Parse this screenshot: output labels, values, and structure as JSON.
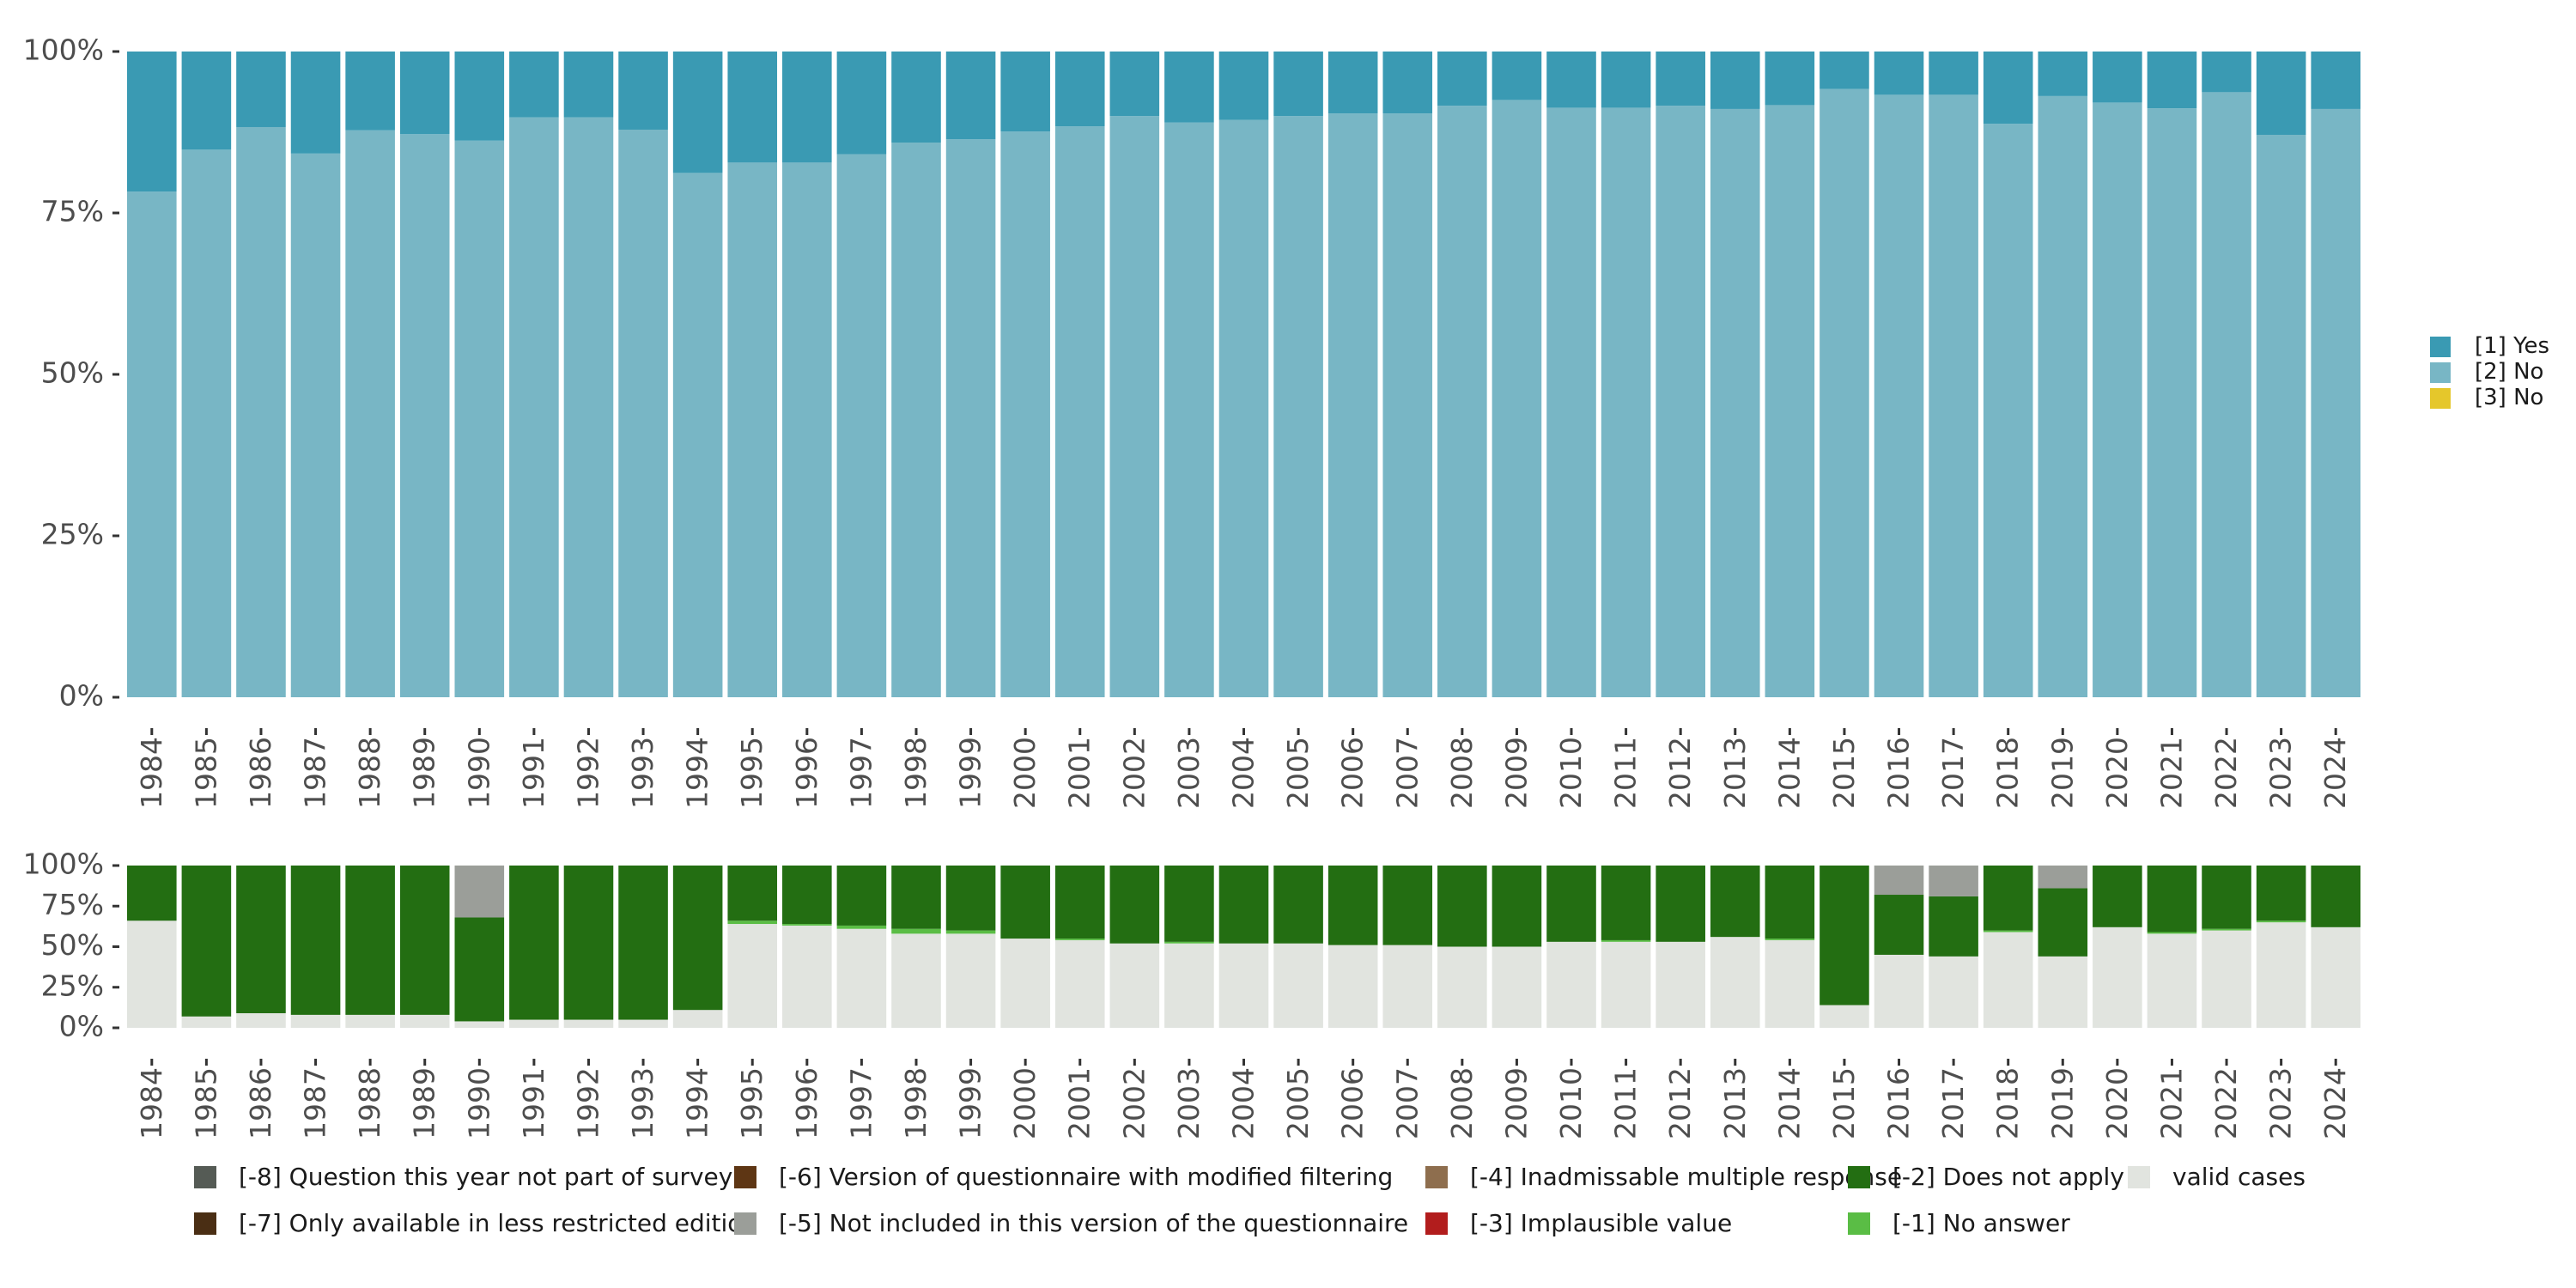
{
  "chart_data": [
    {
      "type": "bar",
      "stacked": true,
      "normalized": true,
      "title": "",
      "xlabel": "",
      "ylabel": "",
      "ylim": [
        0,
        100
      ],
      "yticks": [
        "0%",
        "25%",
        "50%",
        "75%",
        "100%"
      ],
      "categories": [
        "1984",
        "1985",
        "1986",
        "1987",
        "1988",
        "1989",
        "1990",
        "1991",
        "1992",
        "1993",
        "1994",
        "1995",
        "1996",
        "1997",
        "1998",
        "1999",
        "2000",
        "2001",
        "2002",
        "2003",
        "2004",
        "2005",
        "2006",
        "2007",
        "2008",
        "2009",
        "2010",
        "2011",
        "2012",
        "2013",
        "2014",
        "2015",
        "2016",
        "2017",
        "2018",
        "2019",
        "2020",
        "2021",
        "2022",
        "2023",
        "2024"
      ],
      "series": [
        {
          "name": "[2] No",
          "color": "#78b6c5",
          "values": [
            78.3,
            84.8,
            88.3,
            84.2,
            87.8,
            87.2,
            86.2,
            89.8,
            89.8,
            87.9,
            81.2,
            82.8,
            82.8,
            84.1,
            85.9,
            86.4,
            87.6,
            88.4,
            90.0,
            89.0,
            89.4,
            90.0,
            90.4,
            90.4,
            91.6,
            92.5,
            91.3,
            91.3,
            91.6,
            91.1,
            91.7,
            94.2,
            93.3,
            93.3,
            88.8,
            93.1,
            92.1,
            91.2,
            93.7,
            87.1,
            91.1
          ]
        },
        {
          "name": "[1] Yes",
          "color": "#3a9ab3",
          "values": [
            21.7,
            15.2,
            11.7,
            15.8,
            12.2,
            12.8,
            13.8,
            10.2,
            10.2,
            12.1,
            18.8,
            17.2,
            17.2,
            15.9,
            14.1,
            13.6,
            12.4,
            11.6,
            10.0,
            11.0,
            10.6,
            10.0,
            9.6,
            9.6,
            8.4,
            7.5,
            8.7,
            8.7,
            8.4,
            8.9,
            8.3,
            5.8,
            6.7,
            6.7,
            11.2,
            6.9,
            7.9,
            8.8,
            6.3,
            12.9,
            8.9
          ]
        },
        {
          "name": "[3] No",
          "color": "#e5c72b",
          "values": [
            0,
            0,
            0,
            0,
            0,
            0,
            0,
            0,
            0,
            0,
            0,
            0,
            0,
            0,
            0,
            0,
            0,
            0,
            0,
            0,
            0,
            0,
            0,
            0,
            0,
            0,
            0,
            0,
            0,
            0,
            0,
            0,
            0,
            0,
            0,
            0,
            0,
            0,
            0,
            0,
            0
          ]
        }
      ],
      "legend": {
        "placement": "right",
        "items": [
          {
            "label": "[1] Yes",
            "color": "#3a9ab3"
          },
          {
            "label": "[2] No",
            "color": "#78b6c5"
          },
          {
            "label": "[3] No",
            "color": "#e5c72b"
          }
        ]
      }
    },
    {
      "type": "bar",
      "stacked": true,
      "normalized": true,
      "title": "",
      "xlabel": "",
      "ylabel": "",
      "ylim": [
        0,
        100
      ],
      "yticks": [
        "0%",
        "25%",
        "50%",
        "75%",
        "100%"
      ],
      "categories": [
        "1984",
        "1985",
        "1986",
        "1987",
        "1988",
        "1989",
        "1990",
        "1991",
        "1992",
        "1993",
        "1994",
        "1995",
        "1996",
        "1997",
        "1998",
        "1999",
        "2000",
        "2001",
        "2002",
        "2003",
        "2004",
        "2005",
        "2006",
        "2007",
        "2008",
        "2009",
        "2010",
        "2011",
        "2012",
        "2013",
        "2014",
        "2015",
        "2016",
        "2017",
        "2018",
        "2019",
        "2020",
        "2021",
        "2022",
        "2023",
        "2024"
      ],
      "series": [
        {
          "name": "valid cases",
          "color": "#e1e4df",
          "values": [
            66,
            7,
            9,
            8,
            8,
            8,
            4,
            5,
            5,
            5,
            11,
            64,
            63,
            61,
            58,
            58,
            55,
            54,
            52,
            52,
            52,
            52,
            51,
            51,
            50,
            50,
            53,
            53,
            53,
            56,
            54,
            14,
            45,
            44,
            59,
            44,
            62,
            58,
            60,
            65,
            62
          ]
        },
        {
          "name": "[-1] No answer",
          "color": "#5abd45",
          "values": [
            0,
            0,
            0,
            0,
            0,
            0,
            0,
            0,
            0,
            0,
            0,
            2,
            1,
            2,
            3,
            2,
            0,
            1,
            0,
            1,
            0,
            0,
            0,
            0,
            0,
            0,
            0,
            1,
            0,
            0,
            1,
            0,
            0,
            0,
            1,
            0,
            0,
            1,
            1,
            1,
            0
          ]
        },
        {
          "name": "[-2] Does not apply",
          "color": "#236e12",
          "values": [
            34,
            93,
            91,
            92,
            92,
            92,
            64,
            95,
            95,
            95,
            89,
            34,
            36,
            37,
            39,
            40,
            45,
            45,
            48,
            47,
            48,
            48,
            49,
            49,
            50,
            50,
            47,
            46,
            47,
            44,
            45,
            86,
            37,
            37,
            40,
            42,
            38,
            41,
            39,
            34,
            38
          ]
        },
        {
          "name": "[-5] Not included in this version of the questionnaire",
          "color": "#9b9e99",
          "values": [
            0,
            0,
            0,
            0,
            0,
            0,
            32,
            0,
            0,
            0,
            0,
            0,
            0,
            0,
            0,
            0,
            0,
            0,
            0,
            0,
            0,
            0,
            0,
            0,
            0,
            0,
            0,
            0,
            0,
            0,
            0,
            0,
            18,
            19,
            0,
            14,
            0,
            0,
            0,
            0,
            0
          ]
        }
      ],
      "legend": {
        "placement": "bottom",
        "items": [
          {
            "label": "[-8] Question this year not part of survey",
            "color": "#555b55"
          },
          {
            "label": "[-7] Only available in less restricted edition",
            "color": "#4a2e14"
          },
          {
            "label": "[-6] Version of questionnaire with modified filtering",
            "color": "#5e3614"
          },
          {
            "label": "[-5] Not included in this version of the questionnaire",
            "color": "#9b9e99"
          },
          {
            "label": "[-4] Inadmissable multiple response",
            "color": "#8e6e4e"
          },
          {
            "label": "[-3] Implausible value",
            "color": "#b21d1d"
          },
          {
            "label": "[-2] Does not apply",
            "color": "#236e12"
          },
          {
            "label": "[-1] No answer",
            "color": "#5abd45"
          },
          {
            "label": "valid cases",
            "color": "#e1e4df"
          }
        ]
      }
    }
  ]
}
